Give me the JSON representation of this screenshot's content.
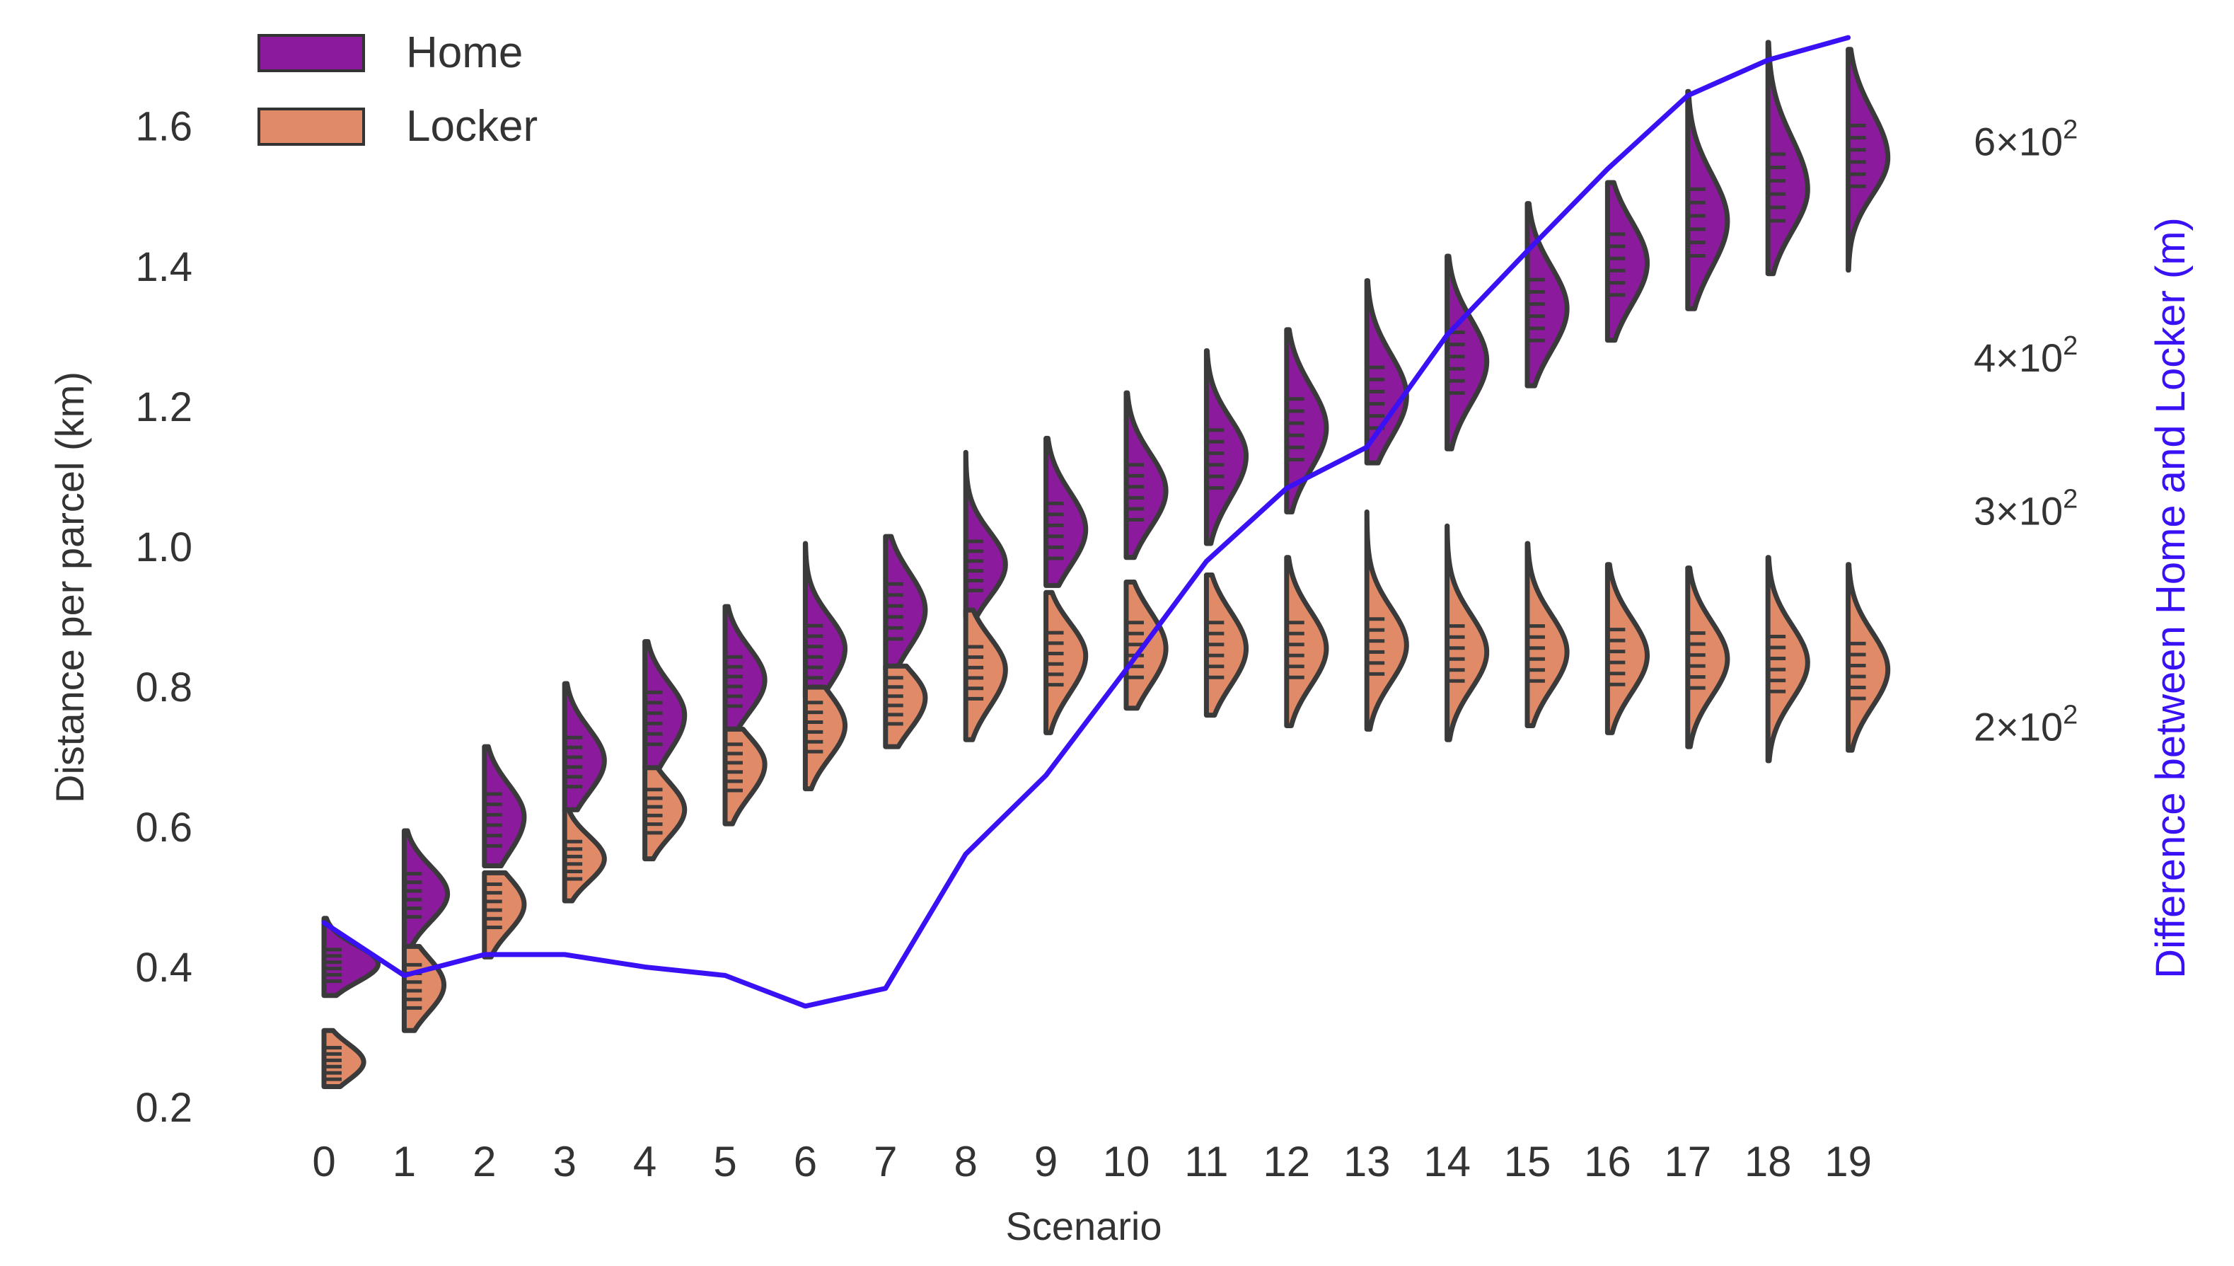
{
  "chart_data": {
    "type": "violin",
    "xlabel": "Scenario",
    "ylabel": "Distance per parcel (km)",
    "ylabel_right": "Difference between Home and Locker (m)",
    "x_categories": [
      0,
      1,
      2,
      3,
      4,
      5,
      6,
      7,
      8,
      9,
      10,
      11,
      12,
      13,
      14,
      15,
      16,
      17,
      18,
      19
    ],
    "y_ticks": [
      0.2,
      0.4,
      0.6,
      0.8,
      1.0,
      1.2,
      1.4,
      1.6
    ],
    "y_tick_labels": [
      "0.2",
      "0.4",
      "0.6",
      "0.8",
      "1.0",
      "1.2",
      "1.4",
      "1.6"
    ],
    "ylim": [
      0.18,
      1.73
    ],
    "y2_scale": "log",
    "y2_ticks": [
      {
        "value": 200,
        "mantissa": "2",
        "base": "10",
        "exponent": "2"
      },
      {
        "value": 300,
        "mantissa": "3",
        "base": "10",
        "exponent": "2"
      },
      {
        "value": 400,
        "mantissa": "4",
        "base": "10",
        "exponent": "2"
      },
      {
        "value": 600,
        "mantissa": "6",
        "base": "10",
        "exponent": "2"
      }
    ],
    "y2lim": [
      95,
      730
    ],
    "legend": {
      "placement": "top-left",
      "entries": [
        {
          "name": "Home",
          "color": "#8b1a9c"
        },
        {
          "name": "Locker",
          "color": "#e08a67"
        }
      ]
    },
    "series": [
      {
        "name": "Home",
        "color": "#8b1a9c",
        "median": [
          0.405,
          0.505,
          0.615,
          0.695,
          0.76,
          0.81,
          0.855,
          0.91,
          0.975,
          1.025,
          1.08,
          1.13,
          1.17,
          1.215,
          1.265,
          1.34,
          1.405,
          1.465,
          1.51,
          1.555
        ],
        "q1": [
          0.39,
          0.48,
          0.58,
          0.665,
          0.725,
          0.78,
          0.82,
          0.875,
          0.945,
          0.99,
          1.045,
          1.09,
          1.13,
          1.175,
          1.225,
          1.3,
          1.365,
          1.42,
          1.47,
          1.52
        ],
        "q3": [
          0.42,
          0.53,
          0.645,
          0.725,
          0.79,
          0.84,
          0.885,
          0.945,
          1.005,
          1.06,
          1.115,
          1.165,
          1.21,
          1.255,
          1.305,
          1.38,
          1.445,
          1.51,
          1.56,
          1.6
        ],
        "min": [
          0.36,
          0.43,
          0.545,
          0.625,
          0.685,
          0.74,
          0.785,
          0.825,
          0.9,
          0.945,
          0.985,
          1.005,
          1.05,
          1.12,
          1.14,
          1.23,
          1.295,
          1.34,
          1.39,
          1.395
        ],
        "max": [
          0.47,
          0.595,
          0.715,
          0.805,
          0.865,
          0.915,
          1.005,
          1.015,
          1.135,
          1.155,
          1.22,
          1.28,
          1.31,
          1.38,
          1.415,
          1.49,
          1.52,
          1.65,
          1.72,
          1.71
        ],
        "peak_width": [
          0.75,
          0.6,
          0.55,
          0.55,
          0.55,
          0.55,
          0.55,
          0.55,
          0.55,
          0.55,
          0.55,
          0.55,
          0.55,
          0.55,
          0.55,
          0.55,
          0.55,
          0.55,
          0.55,
          0.55
        ]
      },
      {
        "name": "Locker",
        "color": "#e08a67",
        "median": [
          0.265,
          0.375,
          0.49,
          0.555,
          0.625,
          0.69,
          0.745,
          0.785,
          0.825,
          0.845,
          0.855,
          0.855,
          0.855,
          0.86,
          0.85,
          0.85,
          0.845,
          0.84,
          0.835,
          0.825
        ],
        "q1": [
          0.25,
          0.35,
          0.465,
          0.535,
          0.6,
          0.66,
          0.715,
          0.755,
          0.79,
          0.81,
          0.82,
          0.82,
          0.82,
          0.825,
          0.815,
          0.815,
          0.81,
          0.805,
          0.8,
          0.79
        ],
        "q3": [
          0.28,
          0.4,
          0.515,
          0.575,
          0.65,
          0.715,
          0.775,
          0.81,
          0.855,
          0.875,
          0.89,
          0.89,
          0.89,
          0.895,
          0.885,
          0.885,
          0.88,
          0.875,
          0.87,
          0.86
        ],
        "min": [
          0.23,
          0.31,
          0.415,
          0.495,
          0.555,
          0.605,
          0.655,
          0.715,
          0.725,
          0.735,
          0.77,
          0.76,
          0.745,
          0.74,
          0.725,
          0.745,
          0.735,
          0.715,
          0.695,
          0.71
        ],
        "max": [
          0.31,
          0.43,
          0.535,
          0.625,
          0.685,
          0.74,
          0.8,
          0.83,
          0.91,
          0.935,
          0.95,
          0.96,
          0.985,
          1.05,
          1.03,
          1.005,
          0.975,
          0.97,
          0.985,
          0.975
        ],
        "peak_width": [
          0.55,
          0.55,
          0.55,
          0.55,
          0.55,
          0.55,
          0.55,
          0.55,
          0.55,
          0.55,
          0.55,
          0.55,
          0.55,
          0.55,
          0.55,
          0.55,
          0.55,
          0.55,
          0.55,
          0.55
        ]
      }
    ],
    "line_series": {
      "name": "Difference between Home and Locker (m)",
      "axis": "right",
      "color": "#3a10f5",
      "values": [
        138,
        125,
        130,
        130,
        127,
        125,
        118,
        122,
        157,
        182,
        222,
        272,
        312,
        337,
        416,
        487,
        568,
        652,
        697,
        727
      ]
    }
  }
}
